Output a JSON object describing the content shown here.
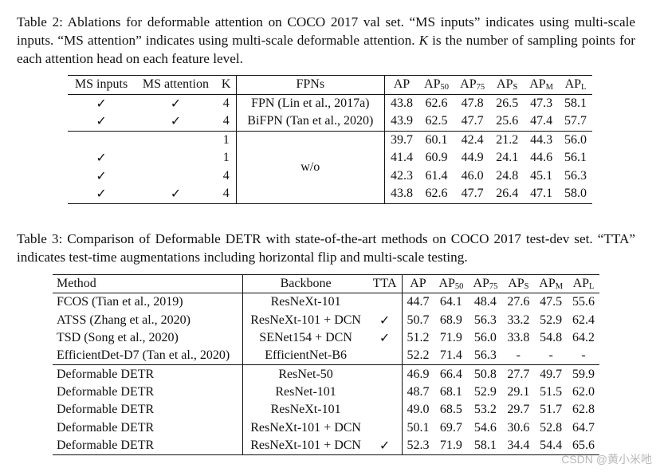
{
  "table2": {
    "caption_a": "Table 2:  Ablations for deformable attention on COCO 2017 val set.  “MS inputs” indicates using multi-scale inputs.  “MS attention” indicates using multi-scale deformable attention.  ",
    "caption_k": "K",
    "caption_b": " is the number of sampling points for each attention head on each feature level.",
    "headers": {
      "ms_inputs": "MS inputs",
      "ms_attention": "MS attention",
      "k": "K",
      "fpns": "FPNs",
      "ap": "AP",
      "ap50_base": "AP",
      "ap50_sub": "50",
      "ap75_base": "AP",
      "ap75_sub": "75",
      "aps_base": "AP",
      "aps_sub": "S",
      "apm_base": "AP",
      "apm_sub": "M",
      "apl_base": "AP",
      "apl_sub": "L"
    },
    "check": "✓",
    "rows_fpn": [
      {
        "ms_inputs": "✓",
        "ms_attention": "✓",
        "k": "4",
        "fpn": "FPN (Lin et al., 2017a)",
        "ap": "43.8",
        "ap50": "62.6",
        "ap75": "47.8",
        "aps": "26.5",
        "apm": "47.3",
        "apl": "58.1"
      },
      {
        "ms_inputs": "✓",
        "ms_attention": "✓",
        "k": "4",
        "fpn": "BiFPN (Tan et al., 2020)",
        "ap": "43.9",
        "ap50": "62.5",
        "ap75": "47.7",
        "aps": "25.6",
        "apm": "47.4",
        "apl": "57.7"
      }
    ],
    "wo_label": "w/o",
    "rows_wo": [
      {
        "ms_inputs": "",
        "ms_attention": "",
        "k": "1",
        "ap": "39.7",
        "ap50": "60.1",
        "ap75": "42.4",
        "aps": "21.2",
        "apm": "44.3",
        "apl": "56.0"
      },
      {
        "ms_inputs": "✓",
        "ms_attention": "",
        "k": "1",
        "ap": "41.4",
        "ap50": "60.9",
        "ap75": "44.9",
        "aps": "24.1",
        "apm": "44.6",
        "apl": "56.1"
      },
      {
        "ms_inputs": "✓",
        "ms_attention": "",
        "k": "4",
        "ap": "42.3",
        "ap50": "61.4",
        "ap75": "46.0",
        "aps": "24.8",
        "apm": "45.1",
        "apl": "56.3"
      },
      {
        "ms_inputs": "✓",
        "ms_attention": "✓",
        "k": "4",
        "ap": "43.8",
        "ap50": "62.6",
        "ap75": "47.7",
        "aps": "26.4",
        "apm": "47.1",
        "apl": "58.0"
      }
    ]
  },
  "table3": {
    "caption": "Table 3:  Comparison of Deformable DETR with state-of-the-art methods on COCO 2017 test-dev set. “TTA” indicates test-time augmentations including horizontal flip and multi-scale testing.",
    "headers": {
      "method": "Method",
      "backbone": "Backbone",
      "tta": "TTA",
      "ap": "AP",
      "ap50_base": "AP",
      "ap50_sub": "50",
      "ap75_base": "AP",
      "ap75_sub": "75",
      "aps_base": "AP",
      "aps_sub": "S",
      "apm_base": "AP",
      "apm_sub": "M",
      "apl_base": "AP",
      "apl_sub": "L"
    },
    "rows_sota": [
      {
        "method": "FCOS (Tian et al., 2019)",
        "backbone": "ResNeXt-101",
        "tta": "",
        "ap": "44.7",
        "ap50": "64.1",
        "ap75": "48.4",
        "aps": "27.6",
        "apm": "47.5",
        "apl": "55.6"
      },
      {
        "method": "ATSS (Zhang et al., 2020)",
        "backbone": "ResNeXt-101 + DCN",
        "tta": "✓",
        "ap": "50.7",
        "ap50": "68.9",
        "ap75": "56.3",
        "aps": "33.2",
        "apm": "52.9",
        "apl": "62.4"
      },
      {
        "method": "TSD (Song et al., 2020)",
        "backbone": "SENet154 + DCN",
        "tta": "✓",
        "ap": "51.2",
        "ap50": "71.9",
        "ap75": "56.0",
        "aps": "33.8",
        "apm": "54.8",
        "apl": "64.2"
      },
      {
        "method": "EfficientDet-D7 (Tan et al., 2020)",
        "backbone": "EfficientNet-B6",
        "tta": "",
        "ap": "52.2",
        "ap50": "71.4",
        "ap75": "56.3",
        "aps": "-",
        "apm": "-",
        "apl": "-"
      }
    ],
    "rows_ours": [
      {
        "method": "Deformable DETR",
        "backbone": "ResNet-50",
        "tta": "",
        "ap": "46.9",
        "ap50": "66.4",
        "ap75": "50.8",
        "aps": "27.7",
        "apm": "49.7",
        "apl": "59.9"
      },
      {
        "method": "Deformable DETR",
        "backbone": "ResNet-101",
        "tta": "",
        "ap": "48.7",
        "ap50": "68.1",
        "ap75": "52.9",
        "aps": "29.1",
        "apm": "51.5",
        "apl": "62.0"
      },
      {
        "method": "Deformable DETR",
        "backbone": "ResNeXt-101",
        "tta": "",
        "ap": "49.0",
        "ap50": "68.5",
        "ap75": "53.2",
        "aps": "29.7",
        "apm": "51.7",
        "apl": "62.8"
      },
      {
        "method": "Deformable DETR",
        "backbone": "ResNeXt-101 + DCN",
        "tta": "",
        "ap": "50.1",
        "ap50": "69.7",
        "ap75": "54.6",
        "aps": "30.6",
        "apm": "52.8",
        "apl": "64.7"
      },
      {
        "method": "Deformable DETR",
        "backbone": "ResNeXt-101 + DCN",
        "tta": "✓",
        "ap": "52.3",
        "ap50": "71.9",
        "ap75": "58.1",
        "aps": "34.4",
        "apm": "54.4",
        "apl": "65.6"
      }
    ]
  },
  "watermark": "CSDN @黄小米吔"
}
